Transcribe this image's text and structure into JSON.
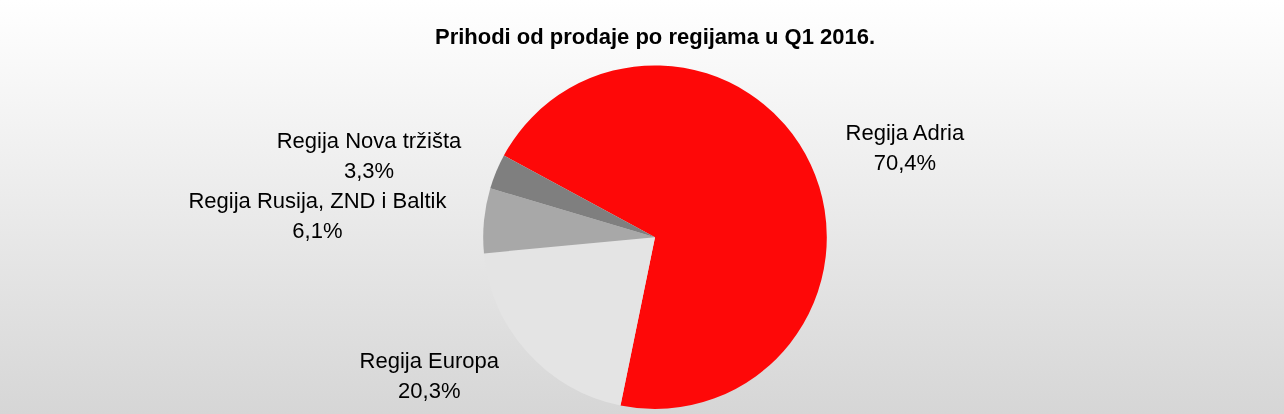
{
  "chart_data": {
    "type": "pie",
    "title": "Prihodi od prodaje po regijama u Q1 2016.",
    "categories": [
      "Regija Adria",
      "Regija Europa",
      "Regija Rusija, ZND i Baltik",
      "Regija Nova tržišta"
    ],
    "values": [
      70.4,
      20.3,
      6.1,
      3.3
    ],
    "value_labels": [
      "70,4%",
      "20,3%",
      "6,1%",
      "3,3%"
    ],
    "colors": [
      "#fe0808",
      "#e4e4e4",
      "#a8a8a8",
      "#7f7f7f"
    ],
    "legend": false
  }
}
